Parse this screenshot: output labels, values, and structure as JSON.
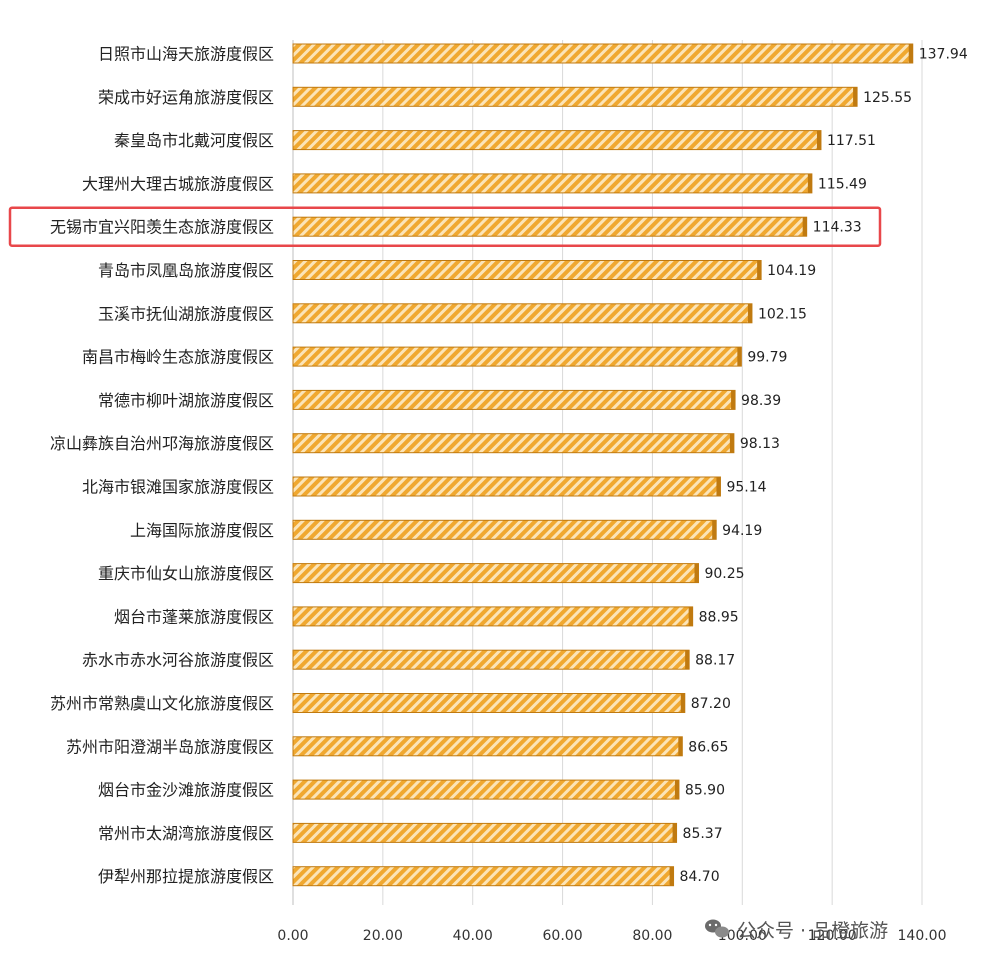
{
  "chart_data": {
    "type": "bar",
    "orientation": "horizontal",
    "categories": [
      "日照市山海天旅游度假区",
      "荣成市好运角旅游度假区",
      "秦皇岛市北戴河度假区",
      "大理州大理古城旅游度假区",
      "无锡市宜兴阳羡生态旅游度假区",
      "青岛市凤凰岛旅游度假区",
      "玉溪市抚仙湖旅游度假区",
      "南昌市梅岭生态旅游度假区",
      "常德市柳叶湖旅游度假区",
      "凉山彝族自治州邛海旅游度假区",
      "北海市银滩国家旅游度假区",
      "上海国际旅游度假区",
      "重庆市仙女山旅游度假区",
      "烟台市蓬莱旅游度假区",
      "赤水市赤水河谷旅游度假区",
      "苏州市常熟虞山文化旅游度假区",
      "苏州市阳澄湖半岛旅游度假区",
      "烟台市金沙滩旅游度假区",
      "常州市太湖湾旅游度假区",
      "伊犁州那拉提旅游度假区"
    ],
    "values": [
      137.94,
      125.55,
      117.51,
      115.49,
      114.33,
      104.19,
      102.15,
      99.79,
      98.39,
      98.13,
      95.14,
      94.19,
      90.25,
      88.95,
      88.17,
      87.2,
      86.65,
      85.9,
      85.37,
      84.7
    ],
    "value_labels": [
      "137.94",
      "125.55",
      "117.51",
      "115.49",
      "114.33",
      "104.19",
      "102.15",
      "99.79",
      "98.39",
      "98.13",
      "95.14",
      "94.19",
      "90.25",
      "88.95",
      "88.17",
      "87.20",
      "86.65",
      "85.90",
      "85.37",
      "84.70"
    ],
    "xlim": [
      0,
      140
    ],
    "xticks": [
      "0.00",
      "20.00",
      "40.00",
      "60.00",
      "80.00",
      "100.00",
      "120.00",
      "140.00"
    ],
    "highlighted_category": "无锡市宜兴阳羡生态旅游度假区",
    "grid": true,
    "bar_color": "#f0a830",
    "bar_stripe_color": "#fbe4b8",
    "bar_edge_color": "#c07a10",
    "highlight_color": "#e8474a"
  },
  "watermark": {
    "icon": "wechat-icon",
    "text": "公众号 · 品橙旅游"
  }
}
